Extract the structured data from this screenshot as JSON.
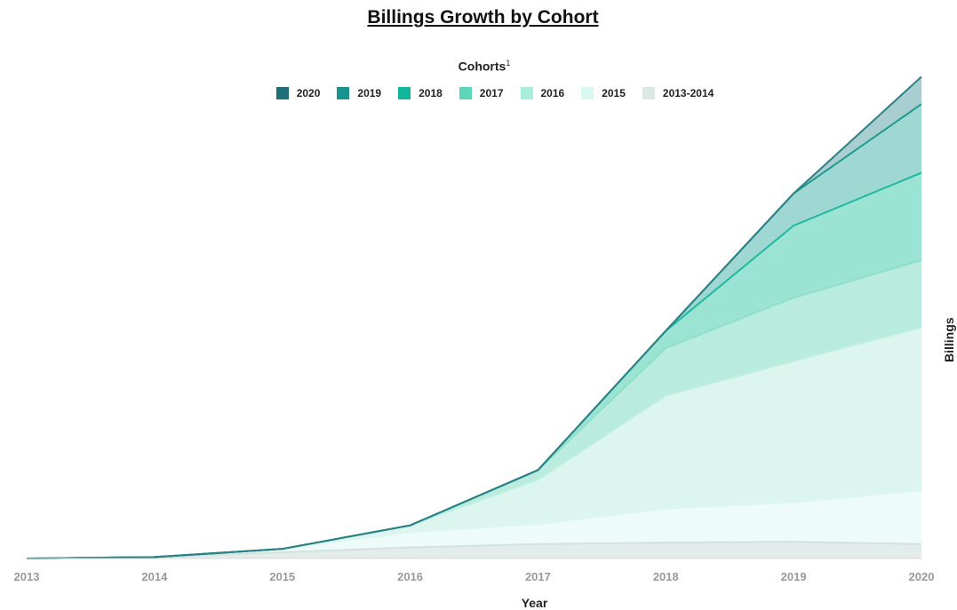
{
  "chart_data": {
    "type": "area",
    "title": "Billings Growth by Cohort",
    "legend_title": "Cohorts",
    "legend_title_superscript": "1",
    "xlabel": "Year",
    "ylabel": "Billings",
    "x": [
      "2013",
      "2014",
      "2015",
      "2016",
      "2017",
      "2018",
      "2019",
      "2020"
    ],
    "ylim": [
      0,
      100
    ],
    "grid": false,
    "legend_position": "top-center",
    "stacked": true,
    "series": [
      {
        "name": "2013-2014",
        "color": "#e3ecea",
        "line_color": "#d3e2de",
        "values": [
          0,
          0.3,
          1.3,
          2.3,
          3.0,
          3.3,
          3.5,
          3.0
        ]
      },
      {
        "name": "2015",
        "color": "#eefcf9",
        "line_color": "#dff6ef",
        "values": [
          0,
          0,
          0.7,
          3.2,
          4.2,
          7.1,
          8.2,
          11.2
        ]
      },
      {
        "name": "2016",
        "color": "#dcf6ef",
        "line_color": "#c0efdf",
        "values": [
          0,
          0,
          0,
          1.4,
          9.2,
          23.5,
          29.4,
          33.9
        ]
      },
      {
        "name": "2017",
        "color": "#b9ecdf",
        "line_color": "#8fe0c9",
        "values": [
          0,
          0,
          0,
          0,
          2.0,
          9.9,
          13.2,
          14.0
        ]
      },
      {
        "name": "2018",
        "color": "#9be3d3",
        "line_color": "#21b9a0",
        "values": [
          0,
          0,
          0,
          0,
          0,
          3.6,
          15.0,
          18.2
        ]
      },
      {
        "name": "2019",
        "color": "#9fd7d2",
        "line_color": "#1e9893",
        "values": [
          0,
          0,
          0,
          0,
          0,
          0,
          6.7,
          14.3
        ]
      },
      {
        "name": "2020",
        "color": "#a9ced0",
        "line_color": "#2d7f86",
        "values": [
          0,
          0,
          0,
          0,
          0,
          0,
          0,
          5.7
        ]
      }
    ],
    "legend": [
      {
        "name": "2020",
        "color": "#1f6f79"
      },
      {
        "name": "2019",
        "color": "#179490"
      },
      {
        "name": "2018",
        "color": "#13b59b"
      },
      {
        "name": "2017",
        "color": "#5cd6b8"
      },
      {
        "name": "2016",
        "color": "#a8eedd"
      },
      {
        "name": "2015",
        "color": "#d9f8f0"
      },
      {
        "name": "2013-2014",
        "color": "#dce8e6"
      }
    ]
  }
}
